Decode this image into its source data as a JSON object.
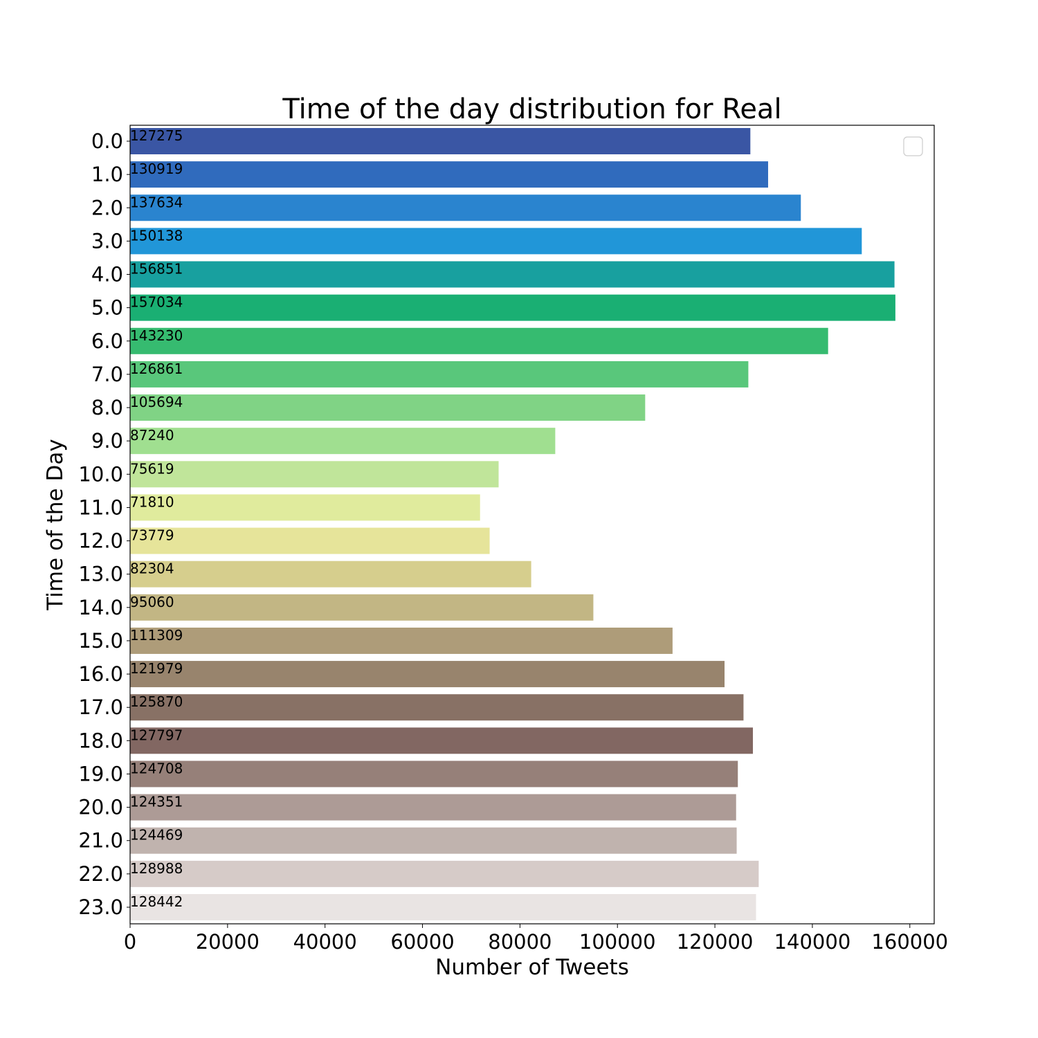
{
  "chart_data": {
    "type": "bar",
    "orientation": "horizontal",
    "title": "Time of the day distribution for Real",
    "xlabel": "Number of Tweets",
    "ylabel": "Time of the Day",
    "categories": [
      "0.0",
      "1.0",
      "2.0",
      "3.0",
      "4.0",
      "5.0",
      "6.0",
      "7.0",
      "8.0",
      "9.0",
      "10.0",
      "11.0",
      "12.0",
      "13.0",
      "14.0",
      "15.0",
      "16.0",
      "17.0",
      "18.0",
      "19.0",
      "20.0",
      "21.0",
      "22.0",
      "23.0"
    ],
    "values": [
      127275,
      130919,
      137634,
      150138,
      156851,
      157034,
      143230,
      126861,
      105694,
      87240,
      75619,
      71810,
      73779,
      82304,
      95060,
      111309,
      121979,
      125870,
      127797,
      124708,
      124351,
      124469,
      128988,
      128442
    ],
    "data_labels": [
      "127275",
      "130919",
      "137634",
      "150138",
      "156851",
      "157034",
      "143230",
      "126861",
      "105694",
      "87240",
      "75619",
      "71810",
      "73779",
      "82304",
      "95060",
      "111309",
      "121979",
      "125870",
      "127797",
      "124708",
      "124351",
      "124469",
      "128988",
      "128442"
    ],
    "colors": [
      "#3a56a4",
      "#306bbd",
      "#2a84cf",
      "#2196d8",
      "#18a09f",
      "#1aaf73",
      "#36bb70",
      "#59c77b",
      "#80d385",
      "#a0df90",
      "#c0e59a",
      "#e0eb9d",
      "#e6e49a",
      "#d6ce8d",
      "#c2b684",
      "#ae9c79",
      "#98846d",
      "#887165",
      "#826762",
      "#968079",
      "#ad9b96",
      "#c0b3ae",
      "#d6cbc8",
      "#e9e4e3"
    ],
    "x_ticks": [
      "0",
      "20000",
      "40000",
      "60000",
      "80000",
      "100000",
      "120000",
      "140000",
      "160000"
    ],
    "x_tick_values": [
      0,
      20000,
      40000,
      60000,
      80000,
      100000,
      120000,
      140000,
      160000
    ],
    "xlim": [
      0,
      165000
    ],
    "legend": "top-right (empty)",
    "grid": false
  }
}
